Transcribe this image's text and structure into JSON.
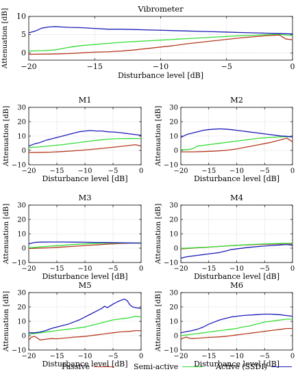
{
  "chart_data": [
    {
      "type": "line",
      "title": "Vibrometer",
      "xlabel": "Disturbance level [dB]",
      "ylabel": "Attenuation [dB]",
      "xlim": [
        -20,
        0
      ],
      "ylim": [
        -2,
        10
      ],
      "xticks": [
        -20,
        -15,
        -10,
        -5,
        0
      ],
      "yticks": [
        0,
        5,
        10
      ],
      "grid": true,
      "series": [
        {
          "name": "Passive",
          "x": [
            -20,
            -18,
            -17,
            -16,
            -15,
            -14,
            -13,
            -12,
            -11,
            -10,
            -9,
            -8,
            -7,
            -6,
            -5,
            -4,
            -3,
            -2,
            -1,
            -0.5,
            0
          ],
          "y": [
            -0.4,
            -0.3,
            -0.2,
            0,
            0.2,
            0.3,
            0.5,
            0.8,
            1.2,
            1.6,
            2.0,
            2.5,
            2.9,
            3.3,
            3.7,
            4.1,
            4.4,
            4.7,
            4.9,
            3.8,
            3.6
          ]
        },
        {
          "name": "Semi-active",
          "x": [
            -20,
            -19,
            -18,
            -17,
            -16,
            -15,
            -14,
            -13,
            -12,
            -11,
            -10,
            -9,
            -8,
            -7,
            -6,
            -5,
            -4,
            -3,
            -2,
            -1,
            -0.5,
            0
          ],
          "y": [
            0.5,
            0.6,
            0.8,
            1.5,
            2.0,
            2.3,
            2.6,
            2.9,
            3.1,
            3.3,
            3.5,
            3.7,
            3.9,
            4.1,
            4.3,
            4.5,
            4.7,
            4.8,
            5.0,
            5.1,
            4.9,
            4.8
          ]
        },
        {
          "name": "Active (SSDI)",
          "x": [
            -20,
            -19.5,
            -19,
            -18.5,
            -18,
            -17,
            -16,
            -15,
            -14,
            -13,
            -12,
            -11,
            -10,
            -9,
            -8,
            -7,
            -6,
            -5,
            -4,
            -3,
            -2,
            -1,
            0
          ],
          "y": [
            5.5,
            6.0,
            6.8,
            7.1,
            7.2,
            7.0,
            6.9,
            6.7,
            6.5,
            6.5,
            6.4,
            6.3,
            6.2,
            6.1,
            6.0,
            5.9,
            5.8,
            5.7,
            5.6,
            5.5,
            5.4,
            5.3,
            5.2
          ]
        }
      ]
    },
    {
      "type": "line",
      "title": "M1",
      "xlabel": "Disturbance level [dB]",
      "ylabel": "Attenuation [dB]",
      "xlim": [
        -20,
        0
      ],
      "ylim": [
        -10,
        30
      ],
      "xticks": [
        -20,
        -15,
        -10,
        -5,
        0
      ],
      "yticks": [
        -10,
        0,
        10,
        20,
        30
      ],
      "grid": true,
      "series": [
        {
          "name": "Passive",
          "x": [
            -20,
            -18,
            -16,
            -14,
            -12,
            -10,
            -8,
            -6,
            -4,
            -2,
            -1,
            0
          ],
          "y": [
            -1.5,
            -1.4,
            -1.2,
            -0.8,
            -0.3,
            0.3,
            1.0,
            1.8,
            2.6,
            3.5,
            4.0,
            3.0
          ]
        },
        {
          "name": "Semi-active",
          "x": [
            -20,
            -18,
            -16,
            -14,
            -12,
            -10,
            -8,
            -6,
            -4,
            -2,
            0
          ],
          "y": [
            2.0,
            2.5,
            3.2,
            4.0,
            5.0,
            6.0,
            7.0,
            7.8,
            8.2,
            8.3,
            8.2
          ]
        },
        {
          "name": "Active (SSDI)",
          "x": [
            -20,
            -19,
            -18,
            -17,
            -16,
            -15,
            -14,
            -13,
            -12,
            -11,
            -10,
            -9,
            -8,
            -7,
            -6,
            -5,
            -4,
            -3,
            -2,
            -1,
            0
          ],
          "y": [
            3.0,
            4.5,
            5.5,
            7.0,
            8.0,
            9.0,
            10.0,
            11.0,
            12.0,
            13.0,
            13.5,
            13.8,
            13.5,
            13.5,
            13.0,
            12.8,
            12.5,
            12.0,
            11.5,
            11.0,
            10.5
          ]
        }
      ]
    },
    {
      "type": "line",
      "title": "M2",
      "xlabel": "Disturbance level [dB]",
      "ylabel": "Attenuation [dB]",
      "xlim": [
        -20,
        0
      ],
      "ylim": [
        -10,
        30
      ],
      "xticks": [
        -20,
        -15,
        -10,
        -5,
        0
      ],
      "yticks": [
        -10,
        0,
        10,
        20,
        30
      ],
      "grid": true,
      "series": [
        {
          "name": "Passive",
          "x": [
            -20,
            -18,
            -16,
            -14,
            -12,
            -10,
            -8,
            -6,
            -4,
            -2,
            -1,
            0
          ],
          "y": [
            -1.0,
            -1.0,
            -0.8,
            -0.5,
            0,
            1.0,
            2.5,
            4.0,
            5.5,
            7.5,
            8.5,
            6.0
          ]
        },
        {
          "name": "Semi-active",
          "x": [
            -20,
            -19,
            -18,
            -17,
            -16,
            -14,
            -12,
            -10,
            -8,
            -6,
            -4,
            -2,
            0
          ],
          "y": [
            0.5,
            0.5,
            1.0,
            3.0,
            3.5,
            4.5,
            5.5,
            6.5,
            7.5,
            8.5,
            9.0,
            9.5,
            9.5
          ]
        },
        {
          "name": "Active (SSDI)",
          "x": [
            -20,
            -19,
            -18,
            -17,
            -16,
            -15,
            -14,
            -13,
            -12,
            -11,
            -10,
            -9,
            -8,
            -7,
            -6,
            -5,
            -4,
            -3,
            -2,
            -1,
            0
          ],
          "y": [
            9.0,
            11.0,
            12.0,
            13.0,
            14.0,
            14.5,
            14.8,
            15.0,
            14.8,
            14.5,
            14.0,
            13.5,
            13.0,
            12.5,
            12.0,
            11.5,
            11.0,
            10.5,
            10.0,
            9.8,
            9.5
          ]
        }
      ]
    },
    {
      "type": "line",
      "title": "M3",
      "xlabel": "Disturbance level [dB]",
      "ylabel": "Attenuation [dB]",
      "xlim": [
        -20,
        0
      ],
      "ylim": [
        -10,
        30
      ],
      "xticks": [
        -20,
        -15,
        -10,
        -5,
        0
      ],
      "yticks": [
        -10,
        0,
        10,
        20,
        30
      ],
      "grid": true,
      "series": [
        {
          "name": "Passive",
          "x": [
            -20,
            -18,
            -16,
            -14,
            -12,
            -10,
            -8,
            -6,
            -4,
            -2,
            0
          ],
          "y": [
            -0.2,
            0,
            0.3,
            0.8,
            1.3,
            1.8,
            2.3,
            2.8,
            3.2,
            3.5,
            3.6
          ]
        },
        {
          "name": "Semi-active",
          "x": [
            -20,
            -18,
            -16,
            -14,
            -12,
            -10,
            -8,
            -6,
            -4,
            -2,
            0
          ],
          "y": [
            0.3,
            0.8,
            1.5,
            2.0,
            2.6,
            3.0,
            3.3,
            3.5,
            3.6,
            3.7,
            3.6
          ]
        },
        {
          "name": "Active (SSDI)",
          "x": [
            -20,
            -19,
            -18,
            -16,
            -14,
            -12,
            -10,
            -8,
            -6,
            -4,
            -2,
            0
          ],
          "y": [
            3.0,
            4.0,
            4.2,
            4.3,
            4.3,
            4.2,
            4.1,
            4.0,
            3.9,
            3.8,
            3.6,
            3.5
          ]
        }
      ]
    },
    {
      "type": "line",
      "title": "M4",
      "xlabel": "Disturbance level [dB]",
      "ylabel": "Attenuation [dB]",
      "xlim": [
        -20,
        0
      ],
      "ylim": [
        -10,
        30
      ],
      "xticks": [
        -20,
        -15,
        -10,
        -5,
        0
      ],
      "yticks": [
        -10,
        0,
        10,
        20,
        30
      ],
      "grid": true,
      "series": [
        {
          "name": "Passive",
          "x": [
            -20,
            -18,
            -16,
            -14,
            -12,
            -10,
            -8,
            -6,
            -4,
            -2,
            -1,
            0
          ],
          "y": [
            -0.5,
            0,
            0.5,
            1.0,
            1.5,
            2.0,
            2.3,
            2.6,
            2.8,
            3.0,
            3.2,
            2.8
          ]
        },
        {
          "name": "Semi-active",
          "x": [
            -20,
            -18,
            -16,
            -14,
            -12,
            -10,
            -8,
            -6,
            -4,
            -2,
            0
          ],
          "y": [
            -0.2,
            0.2,
            0.6,
            1.0,
            1.5,
            2.0,
            2.4,
            2.8,
            3.1,
            3.3,
            3.4
          ]
        },
        {
          "name": "Active (SSDI)",
          "x": [
            -20,
            -19,
            -18,
            -17,
            -16,
            -15,
            -14,
            -13,
            -12,
            -11,
            -10,
            -8,
            -6,
            -4,
            -2,
            -1,
            0
          ],
          "y": [
            -7.0,
            -6.0,
            -5.5,
            -5.0,
            -4.5,
            -4.0,
            -3.5,
            -3.0,
            -2.0,
            -1.0,
            -0.5,
            0.5,
            1.2,
            1.8,
            2.3,
            2.5,
            2.0
          ]
        }
      ]
    },
    {
      "type": "line",
      "title": "M5",
      "xlabel": "Disturbance level [dB]",
      "ylabel": "Attenuation [dB]",
      "xlim": [
        -20,
        0
      ],
      "ylim": [
        -10,
        30
      ],
      "xticks": [
        -20,
        -15,
        -10,
        -5,
        0
      ],
      "yticks": [
        -10,
        0,
        10,
        20,
        30
      ],
      "grid": true,
      "series": [
        {
          "name": "Passive",
          "x": [
            -20,
            -19.5,
            -19,
            -18.5,
            -18,
            -17,
            -16,
            -15,
            -14,
            -13,
            -12,
            -11,
            -10,
            -9,
            -8,
            -7,
            -6,
            -5,
            -4,
            -3,
            -2,
            -1,
            0
          ],
          "y": [
            -3.0,
            -1.0,
            -0.5,
            -1.5,
            -3.0,
            -2.5,
            -2.0,
            -2.2,
            -1.8,
            -1.5,
            -1.0,
            -0.8,
            -0.5,
            0,
            0.5,
            1.0,
            1.5,
            2.0,
            2.5,
            2.8,
            3.0,
            3.5,
            3.5
          ]
        },
        {
          "name": "Semi-active",
          "x": [
            -20,
            -19,
            -18,
            -17,
            -16,
            -15,
            -14,
            -13,
            -12,
            -11,
            -10,
            -9,
            -8,
            -7,
            -6,
            -5,
            -4,
            -3,
            -2,
            -1,
            0
          ],
          "y": [
            1.0,
            1.5,
            2.0,
            2.5,
            3.0,
            3.5,
            4.0,
            4.5,
            5.0,
            5.5,
            6.0,
            7.0,
            8.0,
            9.0,
            10.0,
            11.0,
            11.5,
            12.0,
            12.5,
            13.5,
            13.0
          ]
        },
        {
          "name": "Active (SSDI)",
          "x": [
            -20,
            -19,
            -18,
            -17,
            -16,
            -15,
            -14,
            -13,
            -12,
            -11,
            -10,
            -9,
            -8,
            -7,
            -6.5,
            -6,
            -5,
            -4,
            -3,
            -2.5,
            -2,
            -1.5,
            -1,
            0
          ],
          "y": [
            2.0,
            2.0,
            2.5,
            3.5,
            5.0,
            6.0,
            7.0,
            8.0,
            9.5,
            11.0,
            13.0,
            15.0,
            17.0,
            19.0,
            20.5,
            19.5,
            22.0,
            24.0,
            25.5,
            24.5,
            21.5,
            20.0,
            19.5,
            19.0
          ]
        }
      ]
    },
    {
      "type": "line",
      "title": "M6",
      "xlabel": "Disturbance level [dB]",
      "ylabel": "Attenuation [dB]",
      "xlim": [
        -20,
        0
      ],
      "ylim": [
        -10,
        30
      ],
      "xticks": [
        -20,
        -15,
        -10,
        -5,
        0
      ],
      "yticks": [
        -10,
        0,
        10,
        20,
        30
      ],
      "grid": true,
      "series": [
        {
          "name": "Passive",
          "x": [
            -20,
            -19.5,
            -19,
            -18.5,
            -18,
            -17,
            -16,
            -15,
            -14,
            -13,
            -12,
            -11,
            -10,
            -9,
            -8,
            -7,
            -6,
            -5,
            -4,
            -3,
            -2,
            -1,
            0
          ],
          "y": [
            -2.5,
            -1.5,
            -1.0,
            -1.8,
            -2.0,
            -1.8,
            -1.5,
            -1.2,
            -1.0,
            -0.8,
            -0.5,
            0,
            0.5,
            1.0,
            1.5,
            2.0,
            2.5,
            3.0,
            3.5,
            4.0,
            4.5,
            5.0,
            5.0
          ]
        },
        {
          "name": "Semi-active",
          "x": [
            -20,
            -19,
            -18,
            -17,
            -16,
            -15,
            -14,
            -13,
            -12,
            -11,
            -10,
            -9,
            -8,
            -7,
            -6,
            -5,
            -4,
            -3,
            -2,
            -1,
            0
          ],
          "y": [
            0,
            0.5,
            1.0,
            1.5,
            2.0,
            2.5,
            3.0,
            3.5,
            4.0,
            4.5,
            5.0,
            6.0,
            6.5,
            7.5,
            8.5,
            9.5,
            10.0,
            10.5,
            11.0,
            11.5,
            11.5
          ]
        },
        {
          "name": "Active (SSDI)",
          "x": [
            -20,
            -19,
            -18,
            -17,
            -16,
            -15,
            -14,
            -13,
            -12,
            -11,
            -10,
            -9,
            -8,
            -7,
            -6,
            -5,
            -4,
            -3,
            -2,
            -1,
            0
          ],
          "y": [
            2.0,
            2.8,
            3.5,
            4.5,
            6.0,
            8.0,
            9.5,
            11.0,
            12.0,
            13.0,
            13.5,
            14.0,
            14.3,
            14.5,
            14.8,
            15.0,
            15.0,
            14.8,
            14.5,
            14.0,
            13.5
          ]
        }
      ]
    }
  ],
  "legend": {
    "items": [
      {
        "label": "Passive",
        "color": "#b5381e"
      },
      {
        "label": "Semi-active",
        "color": "#33dd33"
      },
      {
        "label": "Active (SSDI)",
        "color": "#1a1ab8"
      }
    ]
  },
  "colors": {
    "grid": "#c8c8c8",
    "axis": "#000000"
  }
}
